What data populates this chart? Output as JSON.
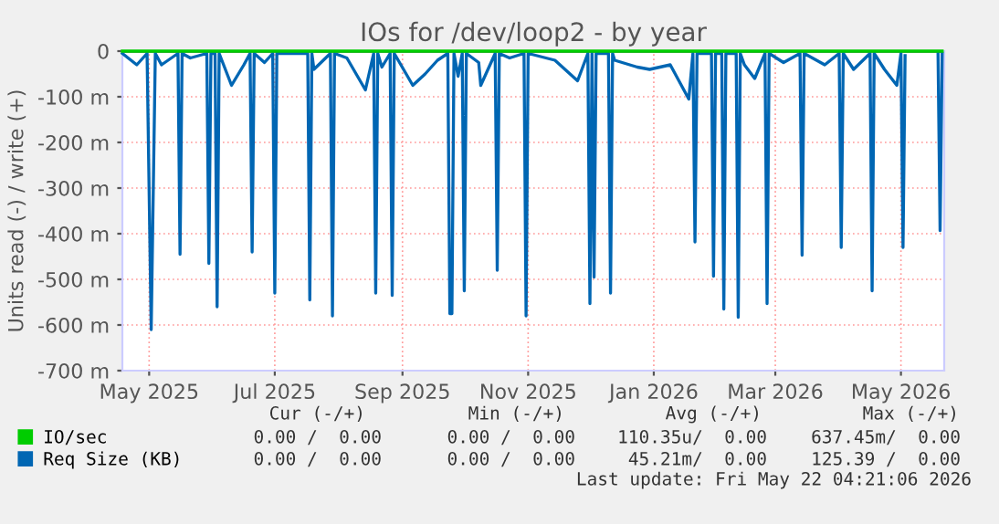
{
  "chart_data": {
    "type": "line",
    "title": "IOs for /dev/loop2 - by year",
    "ylabel": "Units read (-) / write (+)",
    "x": [
      "2025-04-18",
      "2025-04-25",
      "2025-04-30",
      "2025-05-02",
      "2025-05-04",
      "2025-05-07",
      "2025-05-15",
      "2025-05-16",
      "2025-05-17",
      "2025-05-21",
      "2025-05-29",
      "2025-05-30",
      "2025-05-31",
      "2025-06-02",
      "2025-06-03",
      "2025-06-04",
      "2025-06-10",
      "2025-06-16",
      "2025-06-19",
      "2025-06-20",
      "2025-06-21",
      "2025-06-26",
      "2025-06-30",
      "2025-07-01",
      "2025-07-02",
      "2025-07-17",
      "2025-07-18",
      "2025-07-19",
      "2025-07-20",
      "2025-07-28",
      "2025-07-29",
      "2025-07-30",
      "2025-08-05",
      "2025-08-14",
      "2025-08-18",
      "2025-08-19",
      "2025-08-20",
      "2025-08-22",
      "2025-08-26",
      "2025-08-27",
      "2025-08-28",
      "2025-09-06",
      "2025-09-12",
      "2025-09-18",
      "2025-09-23",
      "2025-09-24",
      "2025-09-25",
      "2025-09-26",
      "2025-09-28",
      "2025-09-30",
      "2025-10-01",
      "2025-10-02",
      "2025-10-08",
      "2025-10-09",
      "2025-10-16",
      "2025-10-17",
      "2025-10-18",
      "2025-10-23",
      "2025-10-30",
      "2025-10-31",
      "2025-11-01",
      "2025-11-14",
      "2025-11-25",
      "2025-11-30",
      "2025-12-01",
      "2025-12-02",
      "2025-12-03",
      "2025-12-04",
      "2025-12-10",
      "2025-12-11",
      "2025-12-12",
      "2025-12-13",
      "2025-12-24",
      "2025-12-30",
      "2026-01-09",
      "2026-01-18",
      "2026-01-20",
      "2026-01-21",
      "2026-01-22",
      "2026-01-29",
      "2026-01-30",
      "2026-01-31",
      "2026-02-03",
      "2026-02-04",
      "2026-02-05",
      "2026-02-10",
      "2026-02-11",
      "2026-02-12",
      "2026-02-14",
      "2026-02-19",
      "2026-02-24",
      "2026-02-25",
      "2026-02-26",
      "2026-03-05",
      "2026-03-13",
      "2026-03-14",
      "2026-03-15",
      "2026-03-25",
      "2026-04-01",
      "2026-04-02",
      "2026-04-03",
      "2026-04-08",
      "2026-04-16",
      "2026-04-17",
      "2026-04-18",
      "2026-04-23",
      "2026-04-29",
      "2026-05-01",
      "2026-05-02",
      "2026-05-03",
      "2026-05-04",
      "2026-05-19",
      "2026-05-20",
      "2026-05-21"
    ],
    "series": [
      {
        "name": "IO/sec",
        "color": "#00cc00",
        "x": [
          "2025-04-18",
          "2026-05-21"
        ],
        "values": [
          0,
          0
        ]
      },
      {
        "name": "Req Size (KB)",
        "color": "#0066b3",
        "values": [
          -5,
          -30,
          -5,
          -610,
          -5,
          -30,
          -5,
          -445,
          -5,
          -15,
          -5,
          -465,
          -5,
          -5,
          -560,
          -5,
          -75,
          -30,
          -5,
          -440,
          -5,
          -25,
          -5,
          -530,
          -5,
          -5,
          -545,
          -5,
          -40,
          -5,
          -580,
          -5,
          -15,
          -85,
          -5,
          -530,
          -5,
          -35,
          -5,
          -535,
          -5,
          -75,
          -50,
          -20,
          -5,
          -575,
          -575,
          -5,
          -55,
          -5,
          -525,
          -5,
          -25,
          -75,
          -5,
          -480,
          -5,
          -15,
          -5,
          -580,
          -5,
          -20,
          -65,
          -5,
          -553,
          -5,
          -495,
          -5,
          -5,
          -530,
          -5,
          -20,
          -35,
          -40,
          -30,
          -105,
          -5,
          -418,
          -5,
          -5,
          -493,
          -5,
          -5,
          -565,
          -5,
          -5,
          -583,
          -5,
          -30,
          -60,
          -5,
          -553,
          -5,
          -25,
          -5,
          -447,
          -5,
          -30,
          -5,
          -430,
          -5,
          -40,
          -5,
          -525,
          -5,
          -40,
          -75,
          -5,
          -430,
          -10,
          null,
          -5,
          -393,
          -5
        ]
      }
    ],
    "xlim": [
      "2025-04-18",
      "2026-05-22"
    ],
    "xticks": [
      {
        "value": "2025-05-01",
        "label": "May 2025"
      },
      {
        "value": "2025-07-01",
        "label": "Jul 2025"
      },
      {
        "value": "2025-09-01",
        "label": "Sep 2025"
      },
      {
        "value": "2025-11-01",
        "label": "Nov 2025"
      },
      {
        "value": "2026-01-01",
        "label": "Jan 2026"
      },
      {
        "value": "2026-03-01",
        "label": "Mar 2026"
      },
      {
        "value": "2026-05-01",
        "label": "May 2026"
      }
    ],
    "ylim": [
      -700,
      0
    ],
    "yticks": [
      {
        "value": -700,
        "label": "-700 m"
      },
      {
        "value": -600,
        "label": "-600 m"
      },
      {
        "value": -500,
        "label": "-500 m"
      },
      {
        "value": -400,
        "label": "-400 m"
      },
      {
        "value": -300,
        "label": "-300 m"
      },
      {
        "value": -200,
        "label": "-200 m"
      },
      {
        "value": -100,
        "label": "-100 m"
      },
      0
    ],
    "ref_lines": [
      {
        "axis": "y",
        "value": 0,
        "color": "#000000"
      }
    ],
    "grid": true,
    "legend": "bottom",
    "marker": "none",
    "line_style": "solid",
    "annotations": [
      "Cur (-/+)",
      "Min (-/+)",
      "Avg (-/+)",
      "Max (-/+)",
      "0.00 /  0.00",
      "0.00 /  0.00",
      "110.35u/  0.00",
      "637.45m/  0.00",
      "0.00 /  0.00",
      "0.00 /  0.00",
      "45.21m/  0.00",
      "125.39 /  0.00",
      "Last update: Fri May 22 04:21:06 2026"
    ]
  }
}
